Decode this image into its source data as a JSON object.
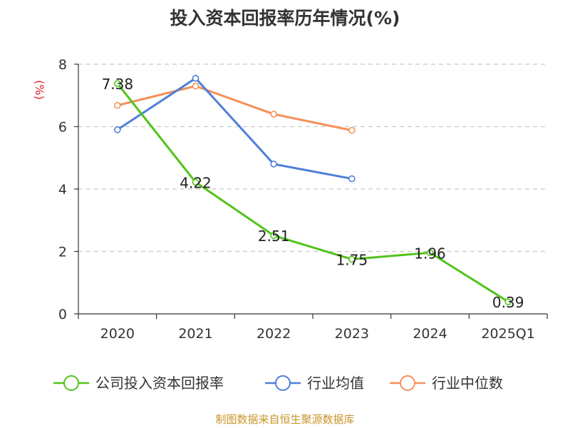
{
  "chart_data": {
    "type": "line",
    "title": "投入资本回报率历年情况(%)",
    "ylabel": "(%)",
    "xlabel": "",
    "ylim": [
      0,
      8
    ],
    "yticks": [
      0,
      2,
      4,
      6,
      8
    ],
    "grid": true,
    "legend_position": "bottom",
    "categories": [
      "2020",
      "2021",
      "2022",
      "2023",
      "2024",
      "2025Q1"
    ],
    "series": [
      {
        "name": "公司投入资本回报率",
        "color": "#52c41a",
        "values": [
          7.38,
          4.22,
          2.51,
          1.75,
          1.96,
          0.39
        ],
        "show_labels": true
      },
      {
        "name": "行业均值",
        "color": "#4f7fd8",
        "values": [
          5.9,
          7.55,
          4.8,
          4.33,
          null,
          null
        ],
        "show_labels": false
      },
      {
        "name": "行业中位数",
        "color": "#f4905a",
        "values": [
          6.68,
          7.3,
          6.4,
          5.88,
          null,
          null
        ],
        "show_labels": false
      }
    ],
    "source": "制图数据来自恒生聚源数据库"
  }
}
